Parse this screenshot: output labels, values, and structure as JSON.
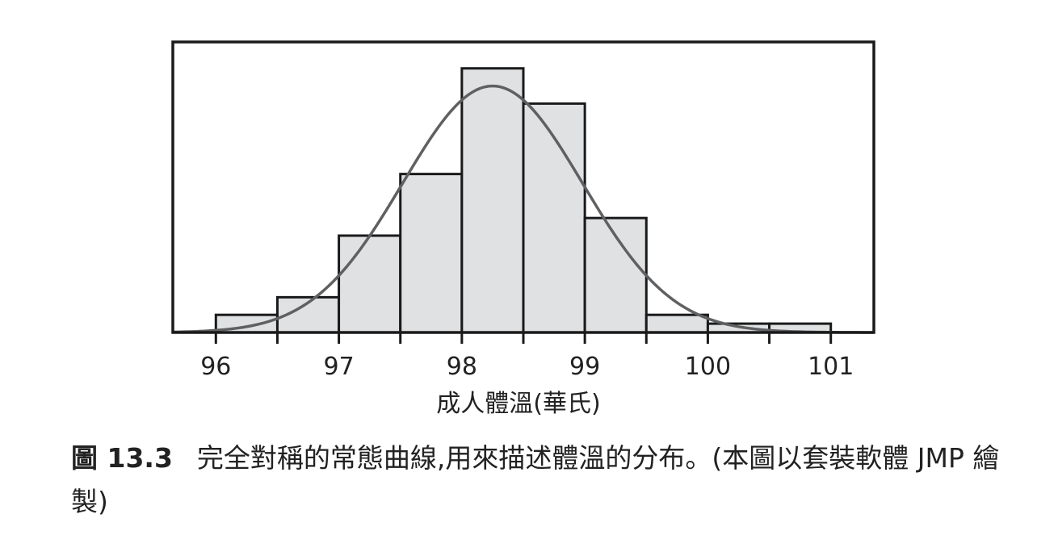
{
  "chart_data": {
    "type": "bar",
    "xlabel": "成人體溫(華氏)",
    "ylabel": "",
    "x_ticks": [
      96,
      97,
      98,
      99,
      100,
      101
    ],
    "xlim": [
      95.65,
      101.35
    ],
    "ylim": [
      0,
      33
    ],
    "bin_edges": [
      96,
      96.5,
      97,
      97.5,
      98,
      98.5,
      99,
      99.5,
      100,
      100.5,
      101
    ],
    "values": [
      2,
      4,
      11,
      18,
      30,
      26,
      13,
      2,
      1,
      1
    ],
    "normal_curve": {
      "mean": 98.25,
      "sd": 0.73,
      "peak": 28
    },
    "grid": false,
    "legend": "none"
  },
  "caption": {
    "label": "圖 13.3",
    "text": "完全對稱的常態曲線,用來描述體溫的分布。(本圖以套裝軟體 JMP 繪製)"
  },
  "colors": {
    "bar_fill": "#e0e1e3",
    "bar_stroke": "#1a1a1a",
    "curve": "#5f6062",
    "frame": "#1a1a1a"
  }
}
